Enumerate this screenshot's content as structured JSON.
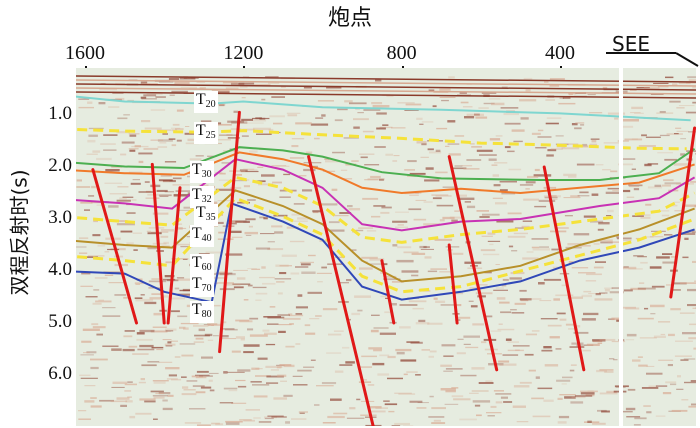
{
  "title": "炮点",
  "direction_label": "SEE",
  "y_axis_label": "双程反射时(s)",
  "x_ticks": [
    {
      "label": "1600",
      "shot": 1600
    },
    {
      "label": "1200",
      "shot": 1200
    },
    {
      "label": "800",
      "shot": 800
    },
    {
      "label": "400",
      "shot": 400
    }
  ],
  "y_ticks": [
    {
      "label": "1.0",
      "t": 1.0
    },
    {
      "label": "2.0",
      "t": 2.0
    },
    {
      "label": "3.0",
      "t": 3.0
    },
    {
      "label": "4.0",
      "t": 4.0
    },
    {
      "label": "5.0",
      "t": 5.0
    },
    {
      "label": "6.0",
      "t": 6.0
    }
  ],
  "horizons": [
    {
      "name": "T",
      "sub": "20",
      "color": "#7fd6d0",
      "style": "solid",
      "pts": [
        [
          1660,
          0.62
        ],
        [
          1500,
          0.74
        ],
        [
          1280,
          0.78
        ],
        [
          1200,
          0.74
        ],
        [
          1000,
          0.85
        ],
        [
          700,
          0.9
        ],
        [
          400,
          0.97
        ],
        [
          200,
          1.05
        ],
        [
          70,
          1.1
        ]
      ]
    },
    {
      "name": "T",
      "sub": "25",
      "color": "#f5e23a",
      "style": "dashed",
      "pts": [
        [
          1660,
          1.27
        ],
        [
          1500,
          1.31
        ],
        [
          1300,
          1.33
        ],
        [
          1200,
          1.3
        ],
        [
          1000,
          1.38
        ],
        [
          800,
          1.45
        ],
        [
          600,
          1.54
        ],
        [
          400,
          1.58
        ],
        [
          200,
          1.64
        ],
        [
          80,
          1.65
        ]
      ]
    },
    {
      "name": "T",
      "sub": "30",
      "color": "#4caf50",
      "style": "solid",
      "pts": [
        [
          1660,
          1.9
        ],
        [
          1500,
          1.99
        ],
        [
          1350,
          2.02
        ],
        [
          1210,
          1.62
        ],
        [
          1100,
          1.68
        ],
        [
          1000,
          1.8
        ],
        [
          850,
          2.1
        ],
        [
          700,
          2.22
        ],
        [
          450,
          2.25
        ],
        [
          300,
          2.25
        ],
        [
          150,
          2.12
        ],
        [
          60,
          1.65
        ]
      ]
    },
    {
      "name": "T",
      "sub": "32",
      "color": "#f07a2a",
      "style": "solid",
      "pts": [
        [
          1660,
          2.05
        ],
        [
          1500,
          2.12
        ],
        [
          1350,
          2.15
        ],
        [
          1210,
          1.72
        ],
        [
          1100,
          1.85
        ],
        [
          1000,
          2.05
        ],
        [
          900,
          2.4
        ],
        [
          800,
          2.5
        ],
        [
          650,
          2.42
        ],
        [
          500,
          2.5
        ],
        [
          350,
          2.4
        ],
        [
          200,
          2.3
        ],
        [
          60,
          1.95
        ]
      ]
    },
    {
      "name": "T",
      "sub": "35",
      "color": "#c832b4",
      "style": "solid",
      "pts": [
        [
          1660,
          2.62
        ],
        [
          1500,
          2.7
        ],
        [
          1380,
          2.8
        ],
        [
          1220,
          1.85
        ],
        [
          1100,
          2.05
        ],
        [
          1000,
          2.4
        ],
        [
          900,
          3.1
        ],
        [
          800,
          3.22
        ],
        [
          650,
          3.05
        ],
        [
          500,
          3.0
        ],
        [
          300,
          2.75
        ],
        [
          150,
          2.6
        ],
        [
          60,
          2.2
        ]
      ]
    },
    {
      "name": "T",
      "sub": "40",
      "color": "#f5e23a",
      "style": "dashed",
      "pts": [
        [
          1660,
          2.95
        ],
        [
          1500,
          3.05
        ],
        [
          1380,
          3.12
        ],
        [
          1220,
          2.2
        ],
        [
          1100,
          2.4
        ],
        [
          1000,
          2.75
        ],
        [
          900,
          3.35
        ],
        [
          800,
          3.45
        ],
        [
          650,
          3.3
        ],
        [
          500,
          3.2
        ],
        [
          300,
          3.0
        ],
        [
          150,
          2.85
        ],
        [
          60,
          2.5
        ]
      ]
    },
    {
      "name": "T",
      "sub": "60",
      "color": "#b8902a",
      "style": "solid",
      "pts": [
        [
          1660,
          3.4
        ],
        [
          1500,
          3.5
        ],
        [
          1380,
          3.55
        ],
        [
          1220,
          2.45
        ],
        [
          1100,
          2.75
        ],
        [
          1000,
          3.1
        ],
        [
          900,
          3.8
        ],
        [
          800,
          4.2
        ],
        [
          650,
          4.1
        ],
        [
          500,
          3.9
        ],
        [
          350,
          3.5
        ],
        [
          200,
          3.2
        ],
        [
          60,
          2.8
        ]
      ]
    },
    {
      "name": "T",
      "sub": "70",
      "color": "#f5e23a",
      "style": "dashed",
      "pts": [
        [
          1660,
          3.7
        ],
        [
          1500,
          3.8
        ],
        [
          1380,
          3.9
        ],
        [
          1220,
          2.6
        ],
        [
          1100,
          2.95
        ],
        [
          1000,
          3.3
        ],
        [
          900,
          4.1
        ],
        [
          800,
          4.4
        ],
        [
          650,
          4.3
        ],
        [
          500,
          4.0
        ],
        [
          350,
          3.7
        ],
        [
          200,
          3.4
        ],
        [
          60,
          3.0
        ]
      ]
    },
    {
      "name": "T",
      "sub": "80",
      "color": "#3048b8",
      "style": "solid",
      "pts": [
        [
          1660,
          4.0
        ],
        [
          1500,
          4.05
        ],
        [
          1400,
          4.4
        ],
        [
          1280,
          4.6
        ],
        [
          1230,
          2.7
        ],
        [
          1100,
          3.05
        ],
        [
          1000,
          3.4
        ],
        [
          900,
          4.3
        ],
        [
          800,
          4.55
        ],
        [
          650,
          4.4
        ],
        [
          500,
          4.2
        ],
        [
          350,
          3.8
        ],
        [
          200,
          3.55
        ],
        [
          60,
          3.2
        ]
      ]
    }
  ],
  "horizon_labels": [
    {
      "name": "T",
      "sub": "20",
      "shot": 1320,
      "t": 0.72
    },
    {
      "name": "T",
      "sub": "25",
      "shot": 1320,
      "t": 1.3
    },
    {
      "name": "T",
      "sub": "30",
      "shot": 1330,
      "t": 2.05
    },
    {
      "name": "T",
      "sub": "32",
      "shot": 1330,
      "t": 2.53
    },
    {
      "name": "T",
      "sub": "35",
      "shot": 1320,
      "t": 2.88
    },
    {
      "name": "T",
      "sub": "40",
      "shot": 1330,
      "t": 3.28
    },
    {
      "name": "T",
      "sub": "60",
      "shot": 1330,
      "t": 3.85
    },
    {
      "name": "T",
      "sub": "70",
      "shot": 1330,
      "t": 4.25
    },
    {
      "name": "T",
      "sub": "80",
      "shot": 1330,
      "t": 4.75
    }
  ],
  "faults": [
    [
      [
        1580,
        2.05
      ],
      [
        1470,
        5.0
      ]
    ],
    [
      [
        1430,
        1.95
      ],
      [
        1400,
        5.0
      ]
    ],
    [
      [
        1360,
        2.4
      ],
      [
        1390,
        5.0
      ]
    ],
    [
      [
        1210,
        0.95
      ],
      [
        1260,
        5.55
      ]
    ],
    [
      [
        1035,
        1.8
      ],
      [
        870,
        7.05
      ]
    ],
    [
      [
        850,
        3.8
      ],
      [
        820,
        5.0
      ]
    ],
    [
      [
        680,
        1.8
      ],
      [
        560,
        5.9
      ]
    ],
    [
      [
        680,
        3.5
      ],
      [
        660,
        5.0
      ]
    ],
    [
      [
        440,
        2.0
      ],
      [
        340,
        5.9
      ]
    ],
    [
      [
        60,
        1.25
      ],
      [
        120,
        4.5
      ]
    ]
  ],
  "colors": {
    "background": "#e6ece0",
    "fault": "#e01818",
    "reflection_dark": "#8a3a2a",
    "reflection_light": "#d8a890"
  }
}
